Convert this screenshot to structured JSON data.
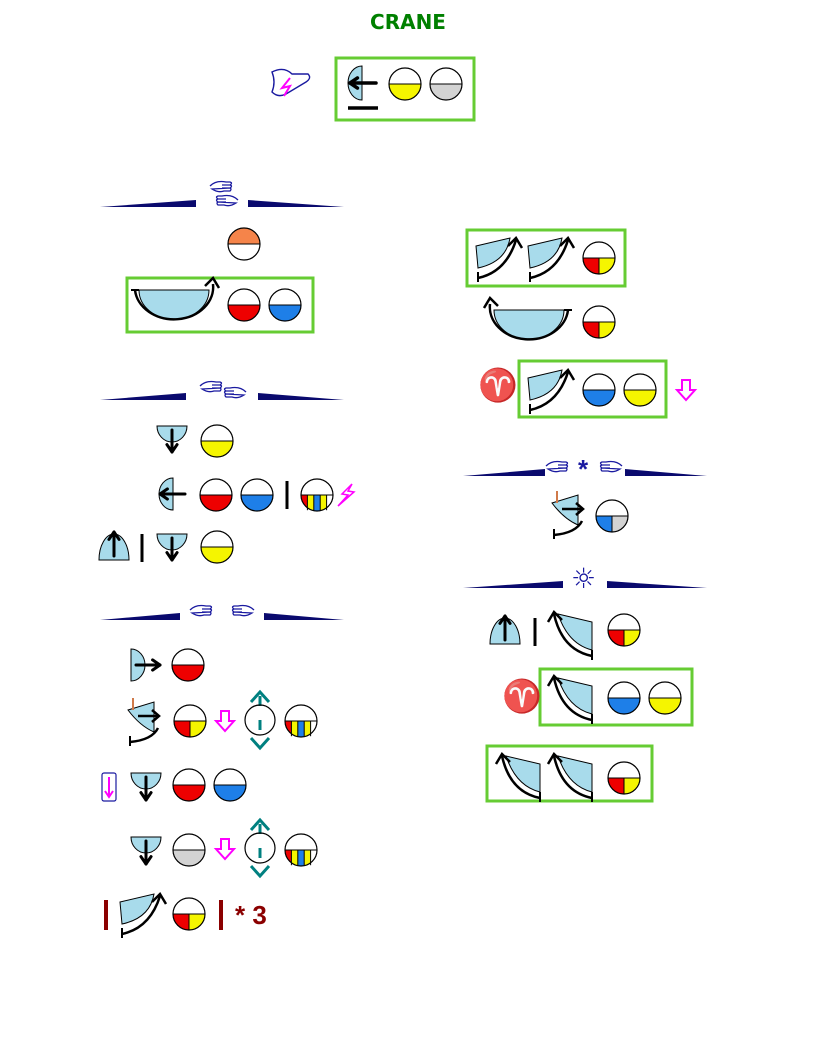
{
  "title": "CRANE",
  "repeat_label": "* 3",
  "aries_symbol": "♈",
  "sun_symbol": "☼",
  "star_symbol": "*",
  "colors": {
    "title": "#008000",
    "frame": "#66cc33",
    "bar": "#0a0a6e",
    "hand": "#1a1aa0",
    "shape_fill": "#a8dbeb",
    "red": "#ee0000",
    "blue": "#1e7fe8",
    "yellow": "#f5f500",
    "orange": "#f5844a",
    "gray": "#d3d3d3",
    "magenta": "#ff00ff",
    "teal": "#008080",
    "maroon": "#8b0000"
  },
  "icons": [
    "hands-twisting-icon",
    "hand-pair-bar-icon",
    "clapping-hands-bar-icon",
    "arrow-left-icon",
    "arrow-down-icon",
    "arrow-up-icon",
    "arrow-right-icon",
    "curved-arrow-icon",
    "half-circle-icon",
    "magenta-lightning-icon",
    "teal-double-arrow-icon",
    "magenta-hollow-down-arrow-icon",
    "magenta-small-arrow-icon"
  ]
}
